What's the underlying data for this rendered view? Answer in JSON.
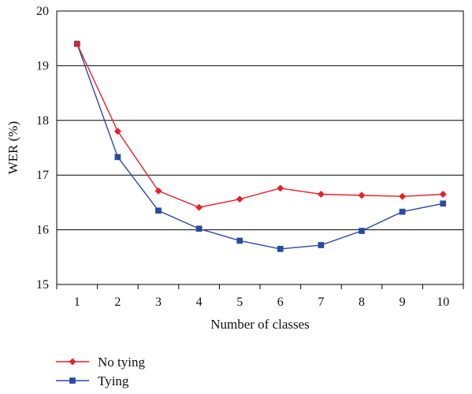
{
  "chart_data": {
    "type": "line",
    "xlabel": "Number of classes",
    "ylabel": "WER (%)",
    "categories": [
      1,
      2,
      3,
      4,
      5,
      6,
      7,
      8,
      9,
      10
    ],
    "ylim": [
      15,
      20
    ],
    "yticks": [
      15,
      16,
      17,
      18,
      19,
      20
    ],
    "grid": "horizontal",
    "legend_position": "bottom-left",
    "series": [
      {
        "name": "No tying",
        "color": "#e8202a",
        "marker": "diamond",
        "values": [
          19.4,
          17.8,
          16.71,
          16.41,
          16.56,
          16.76,
          16.65,
          16.63,
          16.61,
          16.65
        ]
      },
      {
        "name": "Tying",
        "color": "#2a4aa0",
        "marker": "square",
        "values": [
          19.4,
          17.33,
          16.35,
          16.02,
          15.8,
          15.65,
          15.72,
          15.98,
          16.33,
          16.48
        ]
      }
    ]
  }
}
